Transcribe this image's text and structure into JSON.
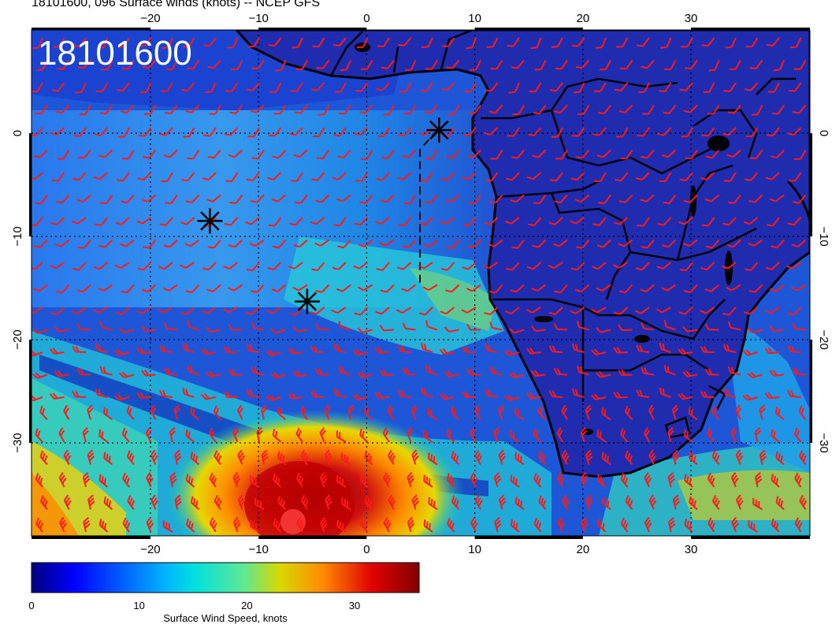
{
  "title": "18101600, 096 Surface winds (knots) -- NCEP GFS",
  "stamp": "18101600",
  "colorbar": {
    "label": "Surface Wind Speed, knots",
    "ticks": [
      "0",
      "10",
      "20",
      "30"
    ],
    "range": [
      0,
      36
    ]
  },
  "axes": {
    "lon_ticks": [
      "−20",
      "−10",
      "0",
      "10",
      "20",
      "30"
    ],
    "lat_ticks": [
      "0",
      "−10",
      "−20",
      "−30"
    ],
    "lon_range": [
      -31,
      41
    ],
    "lat_range": [
      -39,
      10
    ]
  },
  "markers": [
    {
      "name": "storm-marker",
      "lon": -14.5,
      "lat": -8.5
    },
    {
      "name": "storm-marker",
      "lon": -5.5,
      "lat": -16.3
    },
    {
      "name": "storm-marker",
      "lon": 6.7,
      "lat": 0.3
    }
  ],
  "colors": {
    "barb": "#ff1a1a",
    "land": "#1f2fb0",
    "coast": "#000000"
  }
}
